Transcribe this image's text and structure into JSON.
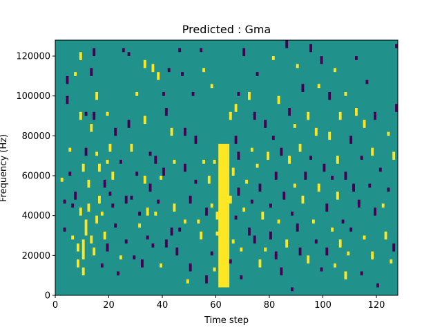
{
  "chart_data": {
    "type": "heatmap",
    "title": "Predicted : Gma",
    "xlabel": "Time step",
    "ylabel": "Frequency (Hz)",
    "xlim": [
      0,
      128
    ],
    "ylim": [
      0,
      128000
    ],
    "grid": false,
    "legend": "none",
    "x_ticks": [
      0,
      20,
      40,
      60,
      80,
      100,
      120
    ],
    "y_ticks": [
      0,
      20000,
      40000,
      60000,
      80000,
      100000,
      120000
    ],
    "x_tick_labels": [
      "0",
      "20",
      "40",
      "60",
      "80",
      "100",
      "120"
    ],
    "y_tick_labels": [
      "0",
      "20000",
      "40000",
      "60000",
      "80000",
      "100000",
      "120000"
    ],
    "n_time_steps": 128,
    "n_freq_bins": 128,
    "colors": {
      "background": "#21918c",
      "high": "#fde725",
      "low": "#440154",
      "mid_light": "#5ec962",
      "mid_dark": "#3b528b"
    },
    "band_fill": {
      "x": [
        61,
        62,
        63,
        64
      ],
      "freq_range": [
        4000,
        76000
      ],
      "value": "high"
    },
    "cells": [
      [
        2,
        57000,
        2000,
        "high"
      ],
      [
        3,
        46000,
        2000,
        "low"
      ],
      [
        3,
        32000,
        2000,
        "low"
      ],
      [
        4,
        106000,
        4000,
        "low"
      ],
      [
        4,
        96000,
        4000,
        "low"
      ],
      [
        5,
        72000,
        2000,
        "high"
      ],
      [
        5,
        60000,
        2000,
        "low"
      ],
      [
        6,
        44000,
        2000,
        "low"
      ],
      [
        6,
        28000,
        2000,
        "high"
      ],
      [
        7,
        110000,
        2000,
        "high"
      ],
      [
        7,
        48000,
        4000,
        "low"
      ],
      [
        8,
        22000,
        4000,
        "high"
      ],
      [
        8,
        14000,
        4000,
        "high"
      ],
      [
        9,
        118000,
        4000,
        "high"
      ],
      [
        9,
        88000,
        4000,
        "high"
      ],
      [
        9,
        40000,
        4000,
        "high"
      ],
      [
        10,
        62000,
        4000,
        "high"
      ],
      [
        10,
        18000,
        10000,
        "high"
      ],
      [
        10,
        10000,
        4000,
        "high"
      ],
      [
        11,
        90000,
        2000,
        "low"
      ],
      [
        11,
        70000,
        4000,
        "low"
      ],
      [
        11,
        30000,
        8000,
        "high"
      ],
      [
        12,
        54000,
        4000,
        "high"
      ],
      [
        12,
        42000,
        4000,
        "high"
      ],
      [
        13,
        110000,
        4000,
        "low"
      ],
      [
        13,
        82000,
        4000,
        "high"
      ],
      [
        13,
        26000,
        4000,
        "high"
      ],
      [
        14,
        120000,
        4000,
        "low"
      ],
      [
        14,
        88000,
        4000,
        "low"
      ],
      [
        14,
        20000,
        4000,
        "high"
      ],
      [
        15,
        98000,
        4000,
        "high"
      ],
      [
        15,
        70000,
        2000,
        "high"
      ],
      [
        15,
        36000,
        4000,
        "high"
      ],
      [
        16,
        62000,
        4000,
        "high"
      ],
      [
        16,
        46000,
        4000,
        "high"
      ],
      [
        17,
        40000,
        2000,
        "high"
      ],
      [
        17,
        14000,
        2000,
        "low"
      ],
      [
        18,
        54000,
        4000,
        "low"
      ],
      [
        18,
        28000,
        4000,
        "high"
      ],
      [
        19,
        90000,
        2000,
        "high"
      ],
      [
        19,
        66000,
        2000,
        "high"
      ],
      [
        19,
        22000,
        4000,
        "low"
      ],
      [
        20,
        72000,
        4000,
        "high"
      ],
      [
        20,
        50000,
        2000,
        "low"
      ],
      [
        21,
        58000,
        4000,
        "high"
      ],
      [
        21,
        44000,
        2000,
        "low"
      ],
      [
        22,
        80000,
        4000,
        "low"
      ],
      [
        22,
        34000,
        2000,
        "low"
      ],
      [
        23,
        10000,
        2000,
        "low"
      ],
      [
        24,
        66000,
        2000,
        "low"
      ],
      [
        24,
        18000,
        2000,
        "high"
      ],
      [
        25,
        122000,
        2000,
        "low"
      ],
      [
        26,
        46000,
        4000,
        "low"
      ],
      [
        26,
        26000,
        2000,
        "low"
      ],
      [
        27,
        120000,
        2000,
        "low"
      ],
      [
        27,
        84000,
        4000,
        "low"
      ],
      [
        28,
        72000,
        4000,
        "high"
      ],
      [
        28,
        48000,
        2000,
        "low"
      ],
      [
        29,
        18000,
        2000,
        "low"
      ],
      [
        30,
        100000,
        2000,
        "high"
      ],
      [
        30,
        60000,
        2000,
        "low"
      ],
      [
        31,
        40000,
        2000,
        "low"
      ],
      [
        31,
        34000,
        2000,
        "high"
      ],
      [
        32,
        14000,
        4000,
        "low"
      ],
      [
        33,
        114000,
        4000,
        "high"
      ],
      [
        33,
        86000,
        4000,
        "high"
      ],
      [
        33,
        56000,
        4000,
        "high"
      ],
      [
        34,
        40000,
        4000,
        "high"
      ],
      [
        34,
        28000,
        2000,
        "low"
      ],
      [
        35,
        70000,
        2000,
        "low"
      ],
      [
        35,
        52000,
        4000,
        "low"
      ],
      [
        36,
        112000,
        4000,
        "high"
      ],
      [
        36,
        24000,
        2000,
        "low"
      ],
      [
        37,
        66000,
        4000,
        "low"
      ],
      [
        37,
        40000,
        2000,
        "high"
      ],
      [
        38,
        108000,
        4000,
        "high"
      ],
      [
        38,
        46000,
        2000,
        "low"
      ],
      [
        39,
        58000,
        2000,
        "high"
      ],
      [
        39,
        14000,
        2000,
        "high"
      ],
      [
        40,
        100000,
        2000,
        "low"
      ],
      [
        40,
        60000,
        4000,
        "low"
      ],
      [
        41,
        90000,
        4000,
        "low"
      ],
      [
        41,
        24000,
        4000,
        "low"
      ],
      [
        42,
        112000,
        2000,
        "low"
      ],
      [
        43,
        80000,
        4000,
        "high"
      ],
      [
        43,
        30000,
        4000,
        "low"
      ],
      [
        44,
        66000,
        2000,
        "high"
      ],
      [
        44,
        42000,
        4000,
        "high"
      ],
      [
        45,
        20000,
        4000,
        "low"
      ],
      [
        46,
        122000,
        2000,
        "low"
      ],
      [
        46,
        32000,
        2000,
        "low"
      ],
      [
        47,
        110000,
        2000,
        "low"
      ],
      [
        48,
        62000,
        4000,
        "low"
      ],
      [
        48,
        80000,
        4000,
        "low"
      ],
      [
        48,
        36000,
        2000,
        "high"
      ],
      [
        49,
        6000,
        2000,
        "high"
      ],
      [
        50,
        46000,
        4000,
        "low"
      ],
      [
        50,
        12000,
        4000,
        "low"
      ],
      [
        51,
        100000,
        2000,
        "low"
      ],
      [
        52,
        76000,
        4000,
        "low"
      ],
      [
        52,
        56000,
        2000,
        "low"
      ],
      [
        53,
        36000,
        2000,
        "high"
      ],
      [
        54,
        122000,
        2000,
        "low"
      ],
      [
        54,
        28000,
        4000,
        "high"
      ],
      [
        55,
        112000,
        2000,
        "high"
      ],
      [
        55,
        66000,
        2000,
        "high"
      ],
      [
        56,
        40000,
        4000,
        "low"
      ],
      [
        56,
        6000,
        4000,
        "low"
      ],
      [
        57,
        56000,
        4000,
        "high"
      ],
      [
        58,
        104000,
        2000,
        "high"
      ],
      [
        58,
        44000,
        2000,
        "high"
      ],
      [
        58,
        20000,
        2000,
        "low"
      ],
      [
        59,
        66000,
        2000,
        "high"
      ],
      [
        59,
        12000,
        2000,
        "high"
      ],
      [
        60,
        38000,
        4000,
        "high"
      ],
      [
        60,
        30000,
        2000,
        "high"
      ],
      [
        65,
        88000,
        4000,
        "high"
      ],
      [
        65,
        46000,
        4000,
        "high"
      ],
      [
        65,
        16000,
        2000,
        "low"
      ],
      [
        66,
        60000,
        4000,
        "high"
      ],
      [
        66,
        26000,
        2000,
        "high"
      ],
      [
        67,
        92000,
        4000,
        "high"
      ],
      [
        67,
        76000,
        4000,
        "low"
      ],
      [
        67,
        38000,
        2000,
        "low"
      ],
      [
        68,
        100000,
        2000,
        "low"
      ],
      [
        68,
        68000,
        4000,
        "low"
      ],
      [
        68,
        50000,
        4000,
        "low"
      ],
      [
        69,
        22000,
        2000,
        "high"
      ],
      [
        69,
        8000,
        2000,
        "low"
      ],
      [
        70,
        120000,
        4000,
        "low"
      ],
      [
        70,
        42000,
        2000,
        "high"
      ],
      [
        71,
        56000,
        2000,
        "high"
      ],
      [
        72,
        98000,
        4000,
        "high"
      ],
      [
        72,
        30000,
        4000,
        "low"
      ],
      [
        73,
        72000,
        2000,
        "high"
      ],
      [
        73,
        46000,
        2000,
        "low"
      ],
      [
        74,
        88000,
        4000,
        "low"
      ],
      [
        74,
        26000,
        4000,
        "low"
      ],
      [
        75,
        110000,
        2000,
        "low"
      ],
      [
        75,
        64000,
        2000,
        "high"
      ],
      [
        76,
        52000,
        4000,
        "low"
      ],
      [
        76,
        14000,
        4000,
        "high"
      ],
      [
        77,
        38000,
        4000,
        "high"
      ],
      [
        78,
        84000,
        4000,
        "low"
      ],
      [
        78,
        22000,
        2000,
        "high"
      ],
      [
        79,
        68000,
        4000,
        "high"
      ],
      [
        80,
        44000,
        2000,
        "low"
      ],
      [
        80,
        28000,
        4000,
        "low"
      ],
      [
        81,
        118000,
        2000,
        "high"
      ],
      [
        81,
        78000,
        2000,
        "low"
      ],
      [
        82,
        58000,
        4000,
        "low"
      ],
      [
        82,
        18000,
        4000,
        "low"
      ],
      [
        83,
        96000,
        4000,
        "high"
      ],
      [
        83,
        36000,
        2000,
        "high"
      ],
      [
        84,
        70000,
        4000,
        "low"
      ],
      [
        84,
        10000,
        4000,
        "low"
      ],
      [
        85,
        48000,
        4000,
        "low"
      ],
      [
        86,
        124000,
        4000,
        "low"
      ],
      [
        86,
        24000,
        4000,
        "high"
      ],
      [
        87,
        90000,
        4000,
        "low"
      ],
      [
        87,
        66000,
        4000,
        "high"
      ],
      [
        88,
        40000,
        2000,
        "low"
      ],
      [
        88,
        2000,
        2000,
        "low"
      ],
      [
        89,
        84000,
        2000,
        "high"
      ],
      [
        89,
        54000,
        2000,
        "high"
      ],
      [
        90,
        114000,
        2000,
        "high"
      ],
      [
        90,
        32000,
        4000,
        "low"
      ],
      [
        91,
        72000,
        4000,
        "high"
      ],
      [
        91,
        20000,
        4000,
        "low"
      ],
      [
        92,
        102000,
        4000,
        "low"
      ],
      [
        92,
        46000,
        4000,
        "high"
      ],
      [
        93,
        58000,
        4000,
        "low"
      ],
      [
        94,
        88000,
        4000,
        "high"
      ],
      [
        94,
        16000,
        4000,
        "high"
      ],
      [
        95,
        122000,
        4000,
        "low"
      ],
      [
        95,
        68000,
        2000,
        "low"
      ],
      [
        96,
        36000,
        2000,
        "high"
      ],
      [
        97,
        80000,
        4000,
        "high"
      ],
      [
        97,
        26000,
        2000,
        "low"
      ],
      [
        98,
        104000,
        2000,
        "high"
      ],
      [
        98,
        52000,
        4000,
        "high"
      ],
      [
        99,
        116000,
        4000,
        "low"
      ],
      [
        99,
        12000,
        2000,
        "low"
      ],
      [
        100,
        62000,
        4000,
        "low"
      ],
      [
        101,
        42000,
        4000,
        "low"
      ],
      [
        101,
        20000,
        4000,
        "low"
      ],
      [
        102,
        98000,
        4000,
        "low"
      ],
      [
        102,
        78000,
        4000,
        "high"
      ],
      [
        103,
        58000,
        2000,
        "low"
      ],
      [
        103,
        32000,
        2000,
        "high"
      ],
      [
        104,
        112000,
        2000,
        "high"
      ],
      [
        104,
        14000,
        2000,
        "high"
      ],
      [
        105,
        66000,
        4000,
        "high"
      ],
      [
        105,
        48000,
        4000,
        "high"
      ],
      [
        106,
        88000,
        4000,
        "high"
      ],
      [
        106,
        24000,
        4000,
        "high"
      ],
      [
        107,
        36000,
        2000,
        "low"
      ],
      [
        108,
        100000,
        2000,
        "high"
      ],
      [
        108,
        58000,
        4000,
        "low"
      ],
      [
        108,
        8000,
        4000,
        "high"
      ],
      [
        109,
        20000,
        2000,
        "high"
      ],
      [
        110,
        76000,
        4000,
        "low"
      ],
      [
        110,
        32000,
        2000,
        "low"
      ],
      [
        111,
        52000,
        4000,
        "low"
      ],
      [
        112,
        118000,
        2000,
        "low"
      ],
      [
        112,
        90000,
        4000,
        "high"
      ],
      [
        113,
        44000,
        4000,
        "low"
      ],
      [
        114,
        68000,
        2000,
        "low"
      ],
      [
        114,
        10000,
        2000,
        "low"
      ],
      [
        115,
        84000,
        4000,
        "high"
      ],
      [
        115,
        28000,
        2000,
        "high"
      ],
      [
        116,
        106000,
        2000,
        "low"
      ],
      [
        117,
        54000,
        2000,
        "low"
      ],
      [
        118,
        70000,
        4000,
        "high"
      ],
      [
        118,
        18000,
        4000,
        "high"
      ],
      [
        119,
        88000,
        4000,
        "low"
      ],
      [
        119,
        40000,
        4000,
        "low"
      ],
      [
        120,
        4000,
        2000,
        "low"
      ],
      [
        121,
        62000,
        2000,
        "low"
      ],
      [
        122,
        44000,
        2000,
        "high"
      ],
      [
        123,
        28000,
        4000,
        "high"
      ],
      [
        124,
        80000,
        2000,
        "high"
      ],
      [
        124,
        52000,
        2000,
        "low"
      ],
      [
        125,
        16000,
        2000,
        "high"
      ],
      [
        126,
        68000,
        4000,
        "high"
      ],
      [
        126,
        22000,
        4000,
        "low"
      ],
      [
        127,
        124000,
        2000,
        "low"
      ],
      [
        127,
        92000,
        4000,
        "low"
      ]
    ]
  }
}
